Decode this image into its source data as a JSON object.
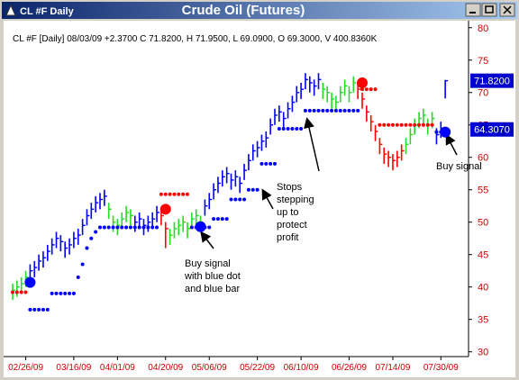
{
  "window_title": "CL #F Daily",
  "chart_data": {
    "type": "ohlc",
    "title": "Crude Oil (Futures)",
    "header": "CL #F [Daily] 08/03/09 +2.3700 C 71.8200, H 71.9500, L 69.0900, O 69.3000, V 400.8360K",
    "categories": [
      null,
      null,
      null,
      "02/26/09",
      null,
      null,
      null,
      null,
      null,
      null,
      null,
      null,
      null,
      null,
      "03/16/09",
      null,
      null,
      null,
      null,
      null,
      null,
      null,
      null,
      null,
      "04/01/09",
      null,
      null,
      null,
      null,
      null,
      null,
      null,
      null,
      null,
      null,
      "04/20/09",
      null,
      null,
      null,
      null,
      null,
      null,
      null,
      null,
      null,
      "05/06/09",
      null,
      null,
      null,
      null,
      null,
      null,
      null,
      null,
      null,
      null,
      "05/22/09",
      null,
      null,
      null,
      null,
      null,
      null,
      null,
      null,
      null,
      "06/10/09",
      null,
      null,
      null,
      null,
      null,
      null,
      null,
      null,
      null,
      null,
      "06/26/09",
      null,
      null,
      null,
      null,
      null,
      null,
      null,
      null,
      null,
      "07/14/09",
      null,
      null,
      null,
      null,
      null,
      null,
      null,
      null,
      null,
      null,
      "07/30/09",
      null
    ],
    "high": [
      40.5,
      41,
      41.5,
      42.5,
      43.5,
      44,
      45,
      45.5,
      46.5,
      47.5,
      48.5,
      48,
      47,
      47.5,
      48.5,
      49,
      50.5,
      52,
      53,
      54,
      54.5,
      55,
      53,
      51,
      50.5,
      51.5,
      52.5,
      52,
      51,
      51.5,
      50.5,
      51,
      51.5,
      52.5,
      52,
      50,
      49,
      50,
      50.5,
      51,
      50,
      51.5,
      52,
      51,
      53.5,
      54.5,
      56,
      57,
      58,
      58.5,
      57.5,
      58,
      57,
      59,
      60.5,
      62,
      62.5,
      63.5,
      64,
      66,
      67.5,
      68,
      67,
      68.5,
      69.5,
      71,
      71.5,
      73,
      72.5,
      72,
      73,
      71.5,
      71,
      70,
      69.5,
      71,
      72,
      71,
      72.5,
      71.5,
      70,
      68,
      66.5,
      65,
      63,
      61.5,
      61,
      60.5,
      61,
      62,
      63,
      64.5,
      66,
      67,
      67.5,
      66,
      67,
      64.5,
      65.5,
      71.95
    ],
    "low": [
      38,
      38.5,
      39,
      40,
      41,
      41.5,
      42.5,
      43,
      44,
      45,
      46,
      45.5,
      44.5,
      45,
      46,
      46.5,
      48,
      49.5,
      50.5,
      51.5,
      52,
      52.5,
      50.5,
      48.5,
      48,
      49,
      50,
      49.5,
      48.5,
      49,
      48,
      48.5,
      49,
      50,
      49.5,
      46,
      46.5,
      47.5,
      48,
      48.5,
      47.5,
      49,
      49.5,
      48.5,
      51,
      52,
      53.5,
      54.5,
      55.5,
      56,
      55,
      55.5,
      54.5,
      56.5,
      58,
      59.5,
      60,
      61,
      61.5,
      63.5,
      65,
      65.5,
      64.5,
      66,
      67,
      68.5,
      69,
      70.5,
      70,
      69.5,
      70.5,
      69,
      68.5,
      67.5,
      67,
      68.5,
      69.5,
      68.5,
      70,
      69,
      67.5,
      65.5,
      64,
      62.5,
      60.5,
      59,
      58.5,
      58,
      58.5,
      59.5,
      60.5,
      62,
      63.5,
      64.5,
      65,
      63.5,
      64.5,
      62,
      63,
      69.09
    ],
    "close": [
      39.5,
      40,
      40.5,
      41.5,
      42.5,
      43,
      44,
      44.5,
      45.5,
      46.5,
      47.5,
      47,
      46,
      46.5,
      47.5,
      48,
      49.5,
      51,
      52,
      53,
      53.5,
      54,
      52,
      50,
      49.5,
      50.5,
      51.5,
      51,
      50,
      50.5,
      49.5,
      50,
      50.5,
      51.5,
      51,
      49,
      48,
      49,
      49.5,
      50,
      49,
      50.5,
      51,
      50,
      52.5,
      53.5,
      55,
      56,
      57,
      57.5,
      56.5,
      57,
      56,
      58,
      59.5,
      61,
      61.5,
      62.5,
      63,
      65,
      66.5,
      67,
      66,
      67.5,
      68.5,
      70,
      70.5,
      72,
      71.5,
      71,
      72,
      70.5,
      70,
      69,
      68.5,
      70,
      71,
      70,
      71.5,
      70.5,
      69,
      67,
      65.5,
      64,
      62,
      60.5,
      60,
      59.5,
      60,
      61,
      62,
      63.5,
      65,
      66,
      66.5,
      65,
      66,
      63.5,
      64.5,
      71.82
    ],
    "bar_colors": [
      "#22dd22",
      "#22dd22",
      "#22dd22",
      "#22dd22",
      "#0000ff",
      "#0000ff",
      "#0000ff",
      "#0000ff",
      "#0000ff",
      "#0000ff",
      "#0000ff",
      "#0000ff",
      "#0000ff",
      "#0000ff",
      "#0000ff",
      "#0000ff",
      "#0000ff",
      "#0000ff",
      "#0000ff",
      "#0000ff",
      "#0000ff",
      "#0000ff",
      "#22dd22",
      "#22dd22",
      "#22dd22",
      "#22dd22",
      "#22dd22",
      "#22dd22",
      "#0000ff",
      "#0000ff",
      "#0000ff",
      "#0000ff",
      "#0000ff",
      "#0000ff",
      "#ff0000",
      "#ff0000",
      "#22dd22",
      "#22dd22",
      "#22dd22",
      "#22dd22",
      "#22dd22",
      "#22dd22",
      "#22dd22",
      "#22dd22",
      "#0000ff",
      "#0000ff",
      "#0000ff",
      "#0000ff",
      "#0000ff",
      "#0000ff",
      "#0000ff",
      "#0000ff",
      "#0000ff",
      "#0000ff",
      "#0000ff",
      "#0000ff",
      "#0000ff",
      "#0000ff",
      "#0000ff",
      "#0000ff",
      "#0000ff",
      "#0000ff",
      "#0000ff",
      "#0000ff",
      "#0000ff",
      "#0000ff",
      "#0000ff",
      "#0000ff",
      "#0000ff",
      "#0000ff",
      "#0000ff",
      "#22dd22",
      "#22dd22",
      "#22dd22",
      "#22dd22",
      "#22dd22",
      "#22dd22",
      "#22dd22",
      "#22dd22",
      "#ff0000",
      "#ff0000",
      "#ff0000",
      "#ff0000",
      "#ff0000",
      "#ff0000",
      "#ff0000",
      "#ff0000",
      "#ff0000",
      "#ff0000",
      "#ff0000",
      "#22dd22",
      "#22dd22",
      "#22dd22",
      "#22dd22",
      "#22dd22",
      "#22dd22",
      "#22dd22",
      "#0000ff",
      "#0000ff",
      "#0000ff"
    ],
    "buy_stop_color": "#0000ff",
    "sell_stop_color": "#ff0000",
    "buy_stop": [
      null,
      null,
      null,
      null,
      36.5,
      36.5,
      36.5,
      36.5,
      36.5,
      39,
      39,
      39,
      39,
      39,
      39,
      41.5,
      43.5,
      46,
      47.5,
      48.5,
      49.2,
      49.2,
      49.2,
      49.2,
      49.2,
      49.2,
      49.2,
      49.2,
      49.2,
      49.2,
      49.2,
      49.2,
      49.2,
      49.2,
      null,
      null,
      null,
      null,
      null,
      null,
      null,
      49.2,
      49.2,
      49.2,
      49.2,
      49.2,
      50.5,
      50.5,
      50.5,
      50.5,
      53.5,
      53.5,
      53.5,
      53.5,
      55,
      55,
      55,
      59,
      59,
      59,
      59,
      64.4,
      64.4,
      64.4,
      64.4,
      64.4,
      64.4,
      67.2,
      67.2,
      67.2,
      67.2,
      67.2,
      67.2,
      67.2,
      67.2,
      67.2,
      67.2,
      67.2,
      67.2,
      67.2,
      null,
      null,
      null,
      null,
      null,
      null,
      null,
      null,
      null,
      null,
      null,
      null,
      null,
      null,
      null,
      null,
      null,
      63.9,
      63.9,
      63.9
    ],
    "sell_stop": [
      39.2,
      39.2,
      39.2,
      39.2,
      null,
      null,
      null,
      null,
      null,
      null,
      null,
      null,
      null,
      null,
      null,
      null,
      null,
      null,
      null,
      null,
      null,
      null,
      null,
      null,
      null,
      null,
      null,
      null,
      null,
      null,
      null,
      null,
      null,
      null,
      54.3,
      54.3,
      54.3,
      54.3,
      54.3,
      54.3,
      54.3,
      null,
      null,
      null,
      null,
      null,
      null,
      null,
      null,
      null,
      null,
      null,
      null,
      null,
      null,
      null,
      null,
      null,
      null,
      null,
      null,
      null,
      null,
      null,
      null,
      null,
      null,
      null,
      null,
      null,
      null,
      null,
      null,
      null,
      null,
      null,
      null,
      null,
      null,
      null,
      70.5,
      70.5,
      70.5,
      70.5,
      65,
      65,
      65,
      65,
      65,
      65,
      65,
      65,
      65,
      65,
      65,
      65,
      65,
      null,
      null,
      null
    ],
    "signals": [
      {
        "bar": 4,
        "value": 40.7,
        "color": "#0000ff"
      },
      {
        "bar": 35,
        "value": 52,
        "color": "#ff0000"
      },
      {
        "bar": 43,
        "value": 49.3,
        "color": "#0000ff"
      },
      {
        "bar": 80,
        "value": 71.5,
        "color": "#ff0000"
      },
      {
        "bar": 99,
        "value": 63.9,
        "color": "#0000ff"
      }
    ],
    "price_tags": [
      {
        "value": 71.82,
        "label": "71.8200"
      },
      {
        "value": 64.307,
        "label": "64.3070"
      }
    ],
    "ylim": [
      29.4,
      80.8
    ],
    "yticks": [
      30,
      35,
      40,
      45,
      50,
      55,
      60,
      65,
      70,
      75,
      80
    ],
    "annotations": [
      {
        "lines": [
          "Buy signal",
          "with blue dot",
          "and blue bar"
        ]
      },
      {
        "lines": [
          "Stops",
          "stepping",
          "up to",
          "protect",
          "profit"
        ]
      },
      {
        "lines": [
          "Buy signal"
        ]
      }
    ]
  }
}
